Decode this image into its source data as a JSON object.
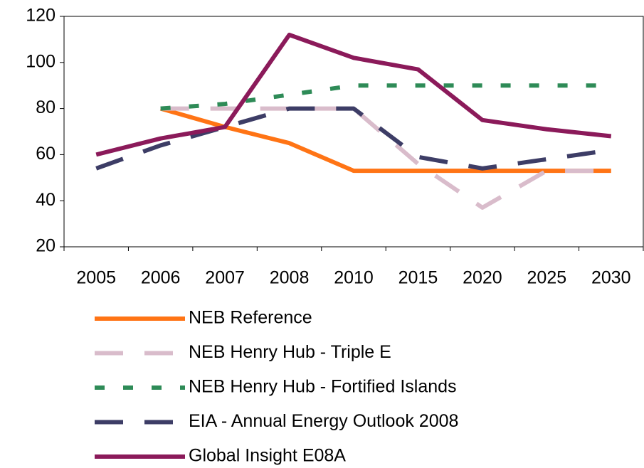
{
  "chart_data": {
    "type": "line",
    "categories": [
      "2005",
      "2006",
      "2007",
      "2008",
      "2010",
      "2015",
      "2020",
      "2025",
      "2030"
    ],
    "series": [
      {
        "name": "NEB Reference",
        "color": "#ff7415",
        "dash": "solid",
        "values": [
          null,
          80,
          72,
          65,
          53,
          53,
          53,
          53,
          53
        ]
      },
      {
        "name": "NEB Henry Hub - Triple E",
        "color": "#d9bccb",
        "dash": "long",
        "values": [
          null,
          80,
          80,
          80,
          80,
          56,
          37,
          53,
          53
        ]
      },
      {
        "name": "NEB Henry Hub - Fortified Islands",
        "color": "#2e8b57",
        "dash": "short",
        "values": [
          null,
          80,
          82,
          86,
          90,
          90,
          90,
          90,
          90
        ]
      },
      {
        "name": "EIA - Annual Energy Outlook 2008",
        "color": "#3d3d66",
        "dash": "long",
        "values": [
          54,
          64,
          72,
          80,
          80,
          59,
          54,
          58,
          62
        ]
      },
      {
        "name": "Global Insight E08A",
        "color": "#8b1a5a",
        "dash": "solid",
        "values": [
          60,
          67,
          72,
          112,
          102,
          97,
          75,
          71,
          68
        ]
      }
    ],
    "ylim": [
      20,
      120
    ],
    "yticks": [
      20,
      40,
      60,
      80,
      100,
      120
    ],
    "legend": "bottom"
  }
}
